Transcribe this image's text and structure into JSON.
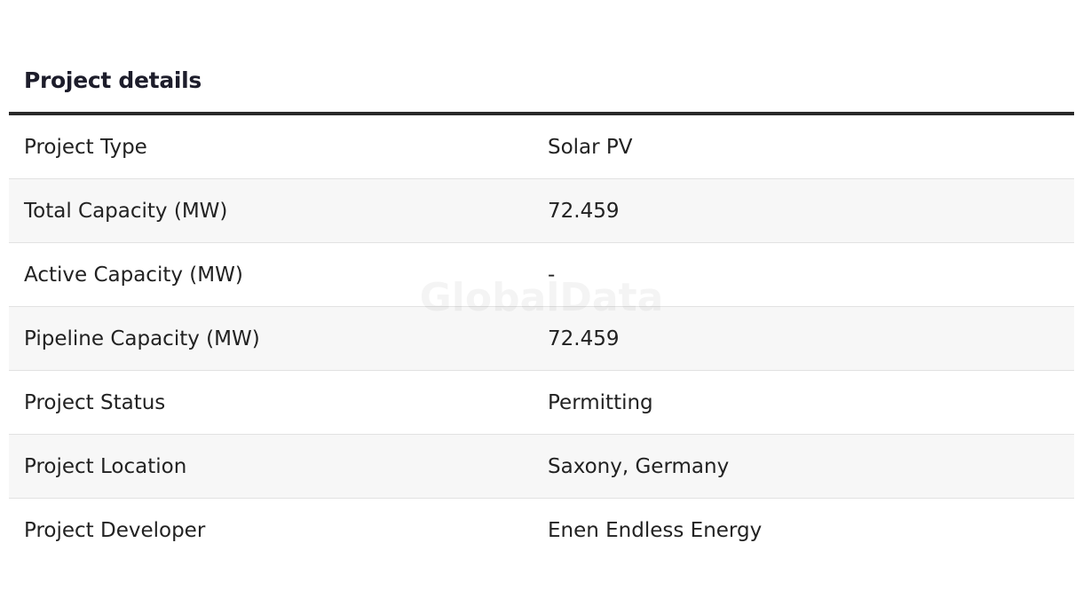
{
  "header": {
    "title": "Project details"
  },
  "watermark": "GlobalData",
  "table": {
    "rows": [
      [
        "Project Type",
        "Solar PV"
      ],
      [
        "Total Capacity (MW)",
        "72.459"
      ],
      [
        "Active Capacity (MW)",
        "-"
      ],
      [
        "Pipeline Capacity (MW)",
        "72.459"
      ],
      [
        "Project Status",
        "Permitting"
      ],
      [
        "Project Location",
        "Saxony, Germany"
      ],
      [
        "Project Developer",
        "Enen Endless Energy"
      ]
    ]
  }
}
